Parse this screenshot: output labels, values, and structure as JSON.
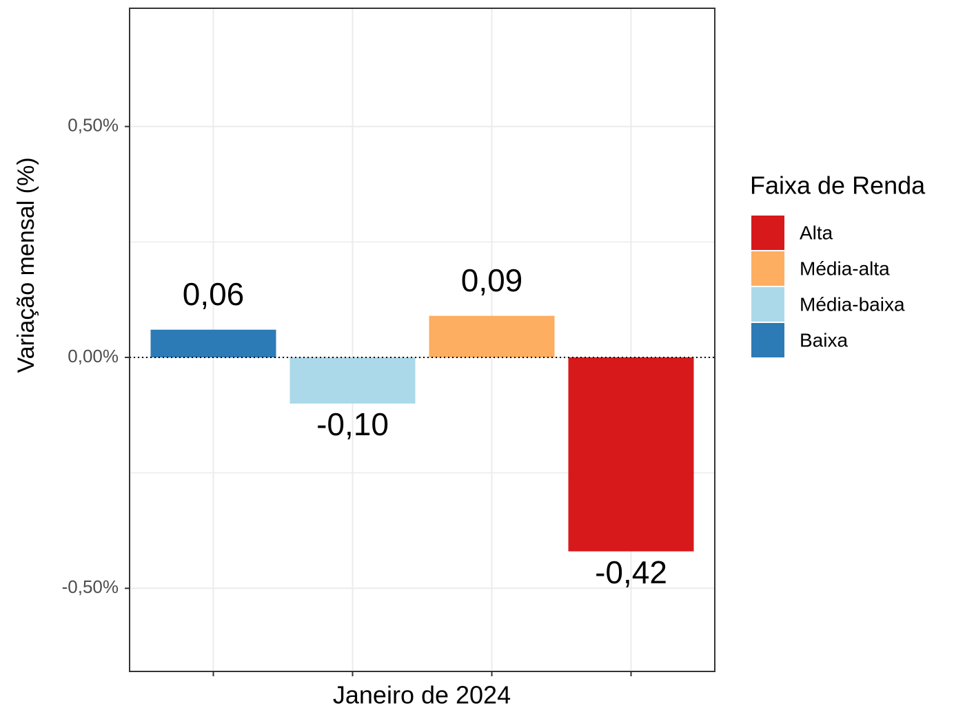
{
  "chart_data": {
    "type": "bar",
    "categories": [
      null
    ],
    "x_label": "Janeiro de 2024",
    "y_label": "Variação mensal (%)",
    "series": [
      {
        "name": "Alta",
        "color": "#d7191c",
        "values": [
          -0.42
        ],
        "value_labels": [
          "-0,42"
        ]
      },
      {
        "name": "Média-alta",
        "color": "#fdae61",
        "values": [
          0.09
        ],
        "value_labels": [
          "0,09"
        ]
      },
      {
        "name": "Média-baixa",
        "color": "#abd9e9",
        "values": [
          -0.1
        ],
        "value_labels": [
          "-0,10"
        ]
      },
      {
        "name": "Baixa",
        "color": "#2c7bb6",
        "values": [
          0.06
        ],
        "value_labels": [
          "0,06"
        ]
      }
    ],
    "legend": {
      "title": "Faixa de Renda",
      "position": "right"
    },
    "ylim": [
      -0.68,
      0.756
    ],
    "yticks": [
      {
        "value": -0.5,
        "label": "-0,50%"
      },
      {
        "value": 0,
        "label": "0,00%"
      },
      {
        "value": 0.5,
        "label": "0,50%"
      }
    ],
    "minor_yticks": [
      -0.25,
      0.25
    ],
    "reference_line": 0,
    "grid": true
  }
}
